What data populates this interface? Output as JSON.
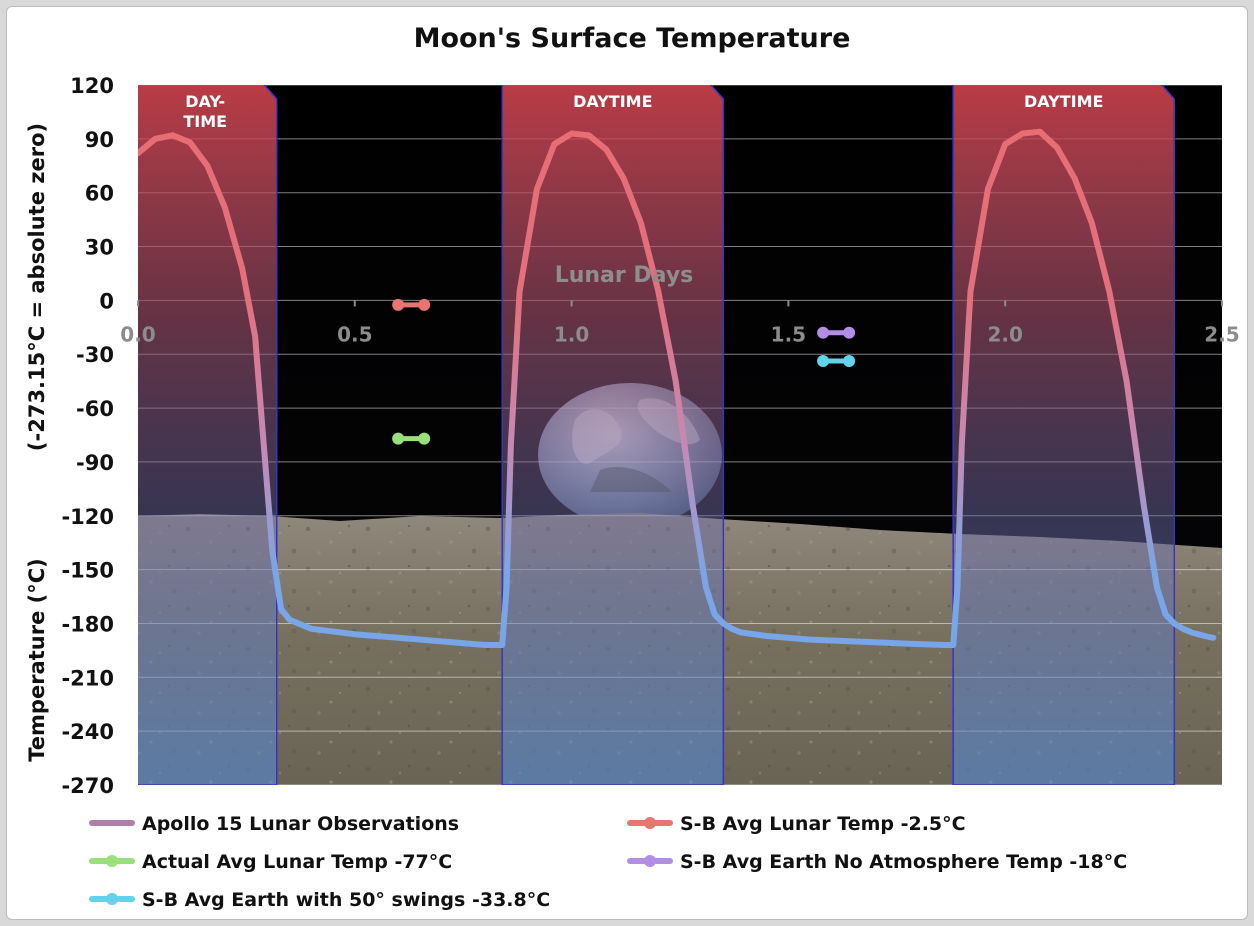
{
  "chart_data": {
    "type": "line",
    "title": "Moon's Surface Temperature",
    "ylabel_top": "(-273.15°C = absolute zero)",
    "ylabel_bottom": "Temperature (°C)",
    "xlabel": "Lunar Days",
    "xlim": [
      0,
      2.5
    ],
    "ylim": [
      -270,
      120
    ],
    "yticks": [
      120,
      90,
      60,
      30,
      0,
      -30,
      -60,
      -90,
      -120,
      -150,
      -180,
      -210,
      -240,
      -270
    ],
    "xticks": [
      "0.0",
      "0.5",
      "1.0",
      "1.5",
      "2.0",
      "2.5"
    ],
    "grid": true,
    "daytime_bands": [
      {
        "label_lines": [
          "DAY-",
          "TIME"
        ],
        "x_start": -0.01,
        "x_end": 0.32
      },
      {
        "label_lines": [
          "DAYTIME"
        ],
        "x_start": 0.84,
        "x_end": 1.35
      },
      {
        "label_lines": [
          "DAYTIME"
        ],
        "x_start": 1.88,
        "x_end": 2.39
      }
    ],
    "series": [
      {
        "name": "Apollo 15 Lunar Observations",
        "color_top": "#e56f73",
        "color_bottom": "#78a8e6",
        "x": [
          0.0,
          0.04,
          0.08,
          0.12,
          0.16,
          0.2,
          0.24,
          0.27,
          0.29,
          0.31,
          0.33,
          0.35,
          0.4,
          0.5,
          0.6,
          0.7,
          0.8,
          0.84,
          0.85,
          0.86,
          0.88,
          0.92,
          0.96,
          1.0,
          1.04,
          1.08,
          1.12,
          1.16,
          1.2,
          1.24,
          1.28,
          1.31,
          1.33,
          1.35,
          1.37,
          1.39,
          1.45,
          1.55,
          1.65,
          1.75,
          1.86,
          1.88,
          1.89,
          1.9,
          1.92,
          1.96,
          2.0,
          2.04,
          2.08,
          2.12,
          2.16,
          2.2,
          2.24,
          2.28,
          2.32,
          2.35,
          2.37,
          2.39,
          2.41,
          2.43,
          2.46,
          2.48
        ],
        "y": [
          82,
          90,
          92,
          88,
          75,
          52,
          18,
          -20,
          -80,
          -140,
          -172,
          -178,
          -183,
          -186,
          -188,
          -190,
          -192,
          -192,
          -160,
          -80,
          5,
          62,
          87,
          93,
          92,
          84,
          68,
          43,
          5,
          -45,
          -115,
          -160,
          -175,
          -180,
          -183,
          -185,
          -187,
          -189,
          -190,
          -191,
          -192,
          -192,
          -160,
          -80,
          5,
          62,
          87,
          93,
          94,
          85,
          68,
          43,
          5,
          -45,
          -115,
          -160,
          -175,
          -180,
          -183,
          -185,
          -187,
          -188
        ]
      },
      {
        "name": "S-B Avg Lunar Temp -2.5°C",
        "color": "#e8756f",
        "x": [
          0.6,
          0.66
        ],
        "y": [
          -2.5,
          -2.5
        ]
      },
      {
        "name": "Actual Avg Lunar Temp -77°C",
        "color": "#98e07a",
        "x": [
          0.6,
          0.66
        ],
        "y": [
          -77,
          -77
        ]
      },
      {
        "name": "S-B Avg Earth No Atmosphere Temp -18°C",
        "color": "#b28ee6",
        "x": [
          1.58,
          1.64
        ],
        "y": [
          -18,
          -18
        ]
      },
      {
        "name": "S-B Avg Earth with 50° swings -33.8°C",
        "color": "#5fd4ec",
        "x": [
          1.58,
          1.64
        ],
        "y": [
          -33.8,
          -33.8
        ]
      }
    ],
    "legend": {
      "placement": "bottom",
      "entries": [
        {
          "label": "Apollo 15 Lunar Observations",
          "color": "#b07ea6"
        },
        {
          "label": "S-B Avg Lunar Temp -2.5°C",
          "color": "#e8756f"
        },
        {
          "label": "Actual Avg Lunar Temp -77°C",
          "color": "#98e07a"
        },
        {
          "label": "S-B Avg Earth No Atmosphere Temp -18°C",
          "color": "#b28ee6"
        },
        {
          "label": "S-B Avg Earth with 50° swings -33.8°C",
          "color": "#5fd4ec"
        }
      ]
    }
  }
}
